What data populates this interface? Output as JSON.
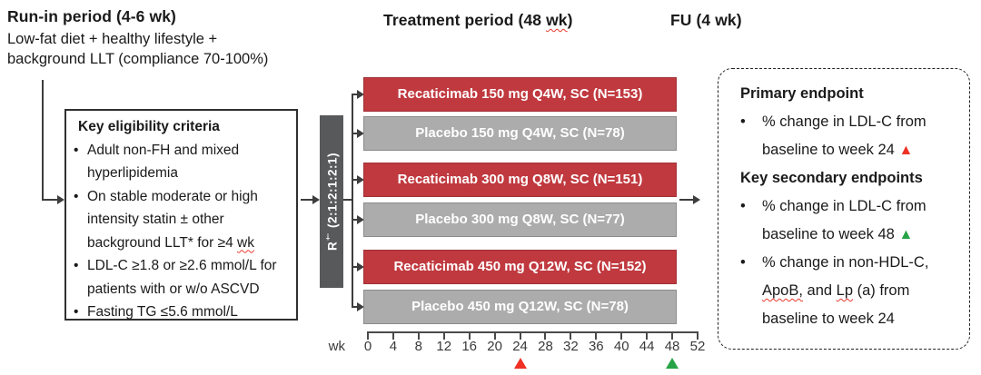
{
  "run_in": {
    "title": "Run-in period (4-6 wk)",
    "line1": "Low-fat diet + healthy lifestyle +",
    "line2": "background LLT (compliance 70-100%)"
  },
  "treatment": {
    "title_pre": "Treatment period (48 ",
    "title_wavy": "wk",
    "title_post": ")"
  },
  "fu": {
    "title": "FU (4 wk)"
  },
  "glyphs": {
    "bullet": "•",
    "triangle": "▲"
  },
  "eligibility": {
    "title": "Key eligibility criteria",
    "bullet1": "Adult non-FH and mixed hyperlipidemia",
    "bullet2_pre": "On stable moderate or high intensity statin ± other background LLT* for ≥4 ",
    "bullet2_wavy": "wk",
    "bullet3": "LDL-C ≥1.8 or ≥2.6 mmol/L for patients with or w/o ASCVD",
    "bullet4": "Fasting TG ≤5.6 mmol/L"
  },
  "randomization": {
    "label": "R",
    "sup": "†",
    "ratio": " (2:1:2:1:2:1)"
  },
  "arms": [
    {
      "label": "Recaticimab 150 mg Q4W, SC (N=153)",
      "type": "drug"
    },
    {
      "label": "Placebo 150 mg Q4W, SC (N=78)",
      "type": "placebo"
    },
    {
      "label": "Recaticimab 300 mg Q8W, SC (N=151)",
      "type": "drug"
    },
    {
      "label": "Placebo 300 mg Q8W, SC (N=77)",
      "type": "placebo"
    },
    {
      "label": "Recaticimab 450 mg Q12W, SC (N=152)",
      "type": "drug"
    },
    {
      "label": "Placebo 450 mg Q12W, SC (N=78)",
      "type": "placebo"
    }
  ],
  "axis": {
    "unit": "wk",
    "ticks": [
      "0",
      "4",
      "8",
      "12",
      "16",
      "20",
      "24",
      "28",
      "32",
      "36",
      "40",
      "44",
      "48",
      "52"
    ],
    "max_week": 52,
    "markers": [
      {
        "week": 24,
        "color": "#ee3124",
        "name": "week-24-marker"
      },
      {
        "week": 48,
        "color": "#27a347",
        "name": "week-48-marker"
      }
    ]
  },
  "endpoints": {
    "primary_title": "Primary endpoint",
    "primary_bullet": "% change in LDL-C from baseline to week 24 ",
    "secondary_title": "Key secondary endpoints",
    "secondary_bullet1": "% change in LDL-C from baseline to week 48 ",
    "secondary_bullet2_s1": "% change in non-HDL-C, ",
    "secondary_bullet2_s2": "ApoB,",
    "secondary_bullet2_s3": " and ",
    "secondary_bullet2_s4": "Lp",
    "secondary_bullet2_s5": " (a) from baseline to week 24"
  },
  "colors": {
    "drug_bar": "#c0393f",
    "placebo_bar": "#acacac",
    "randomization_bar": "#58595b",
    "marker_red": "#ee3124",
    "marker_green": "#27a347"
  }
}
